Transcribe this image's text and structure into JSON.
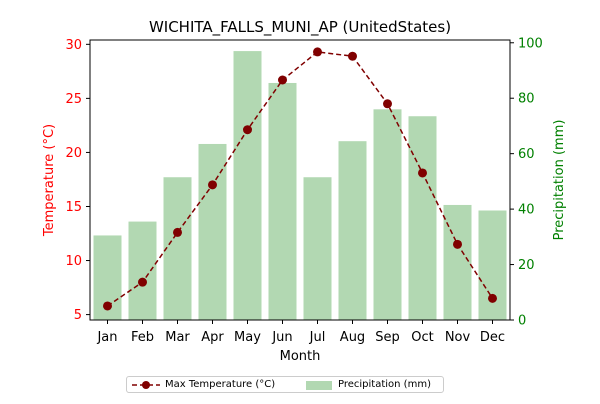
{
  "chart_data": {
    "type": "bar+line",
    "title": "WICHITA_FALLS_MUNI_AP (UnitedStates)",
    "xlabel": "Month",
    "categories": [
      "Jan",
      "Feb",
      "Mar",
      "Apr",
      "May",
      "Jun",
      "Jul",
      "Aug",
      "Sep",
      "Oct",
      "Nov",
      "Dec"
    ],
    "left_axis": {
      "label": "Temperature (°C)",
      "color": "#ff0000",
      "ylim": [
        4.5,
        30.4
      ],
      "ticks": [
        5,
        10,
        15,
        20,
        25,
        30
      ]
    },
    "right_axis": {
      "label": "Precipitation (mm)",
      "color": "#008000",
      "ylim": [
        0,
        101
      ],
      "ticks": [
        0,
        20,
        40,
        60,
        80,
        100
      ]
    },
    "series": [
      {
        "name": "Max Temperature (°C)",
        "kind": "line",
        "axis": "left",
        "color": "#800000",
        "linestyle": "dashed",
        "marker": "circle",
        "values": [
          5.8,
          8.0,
          12.6,
          17.0,
          22.1,
          26.7,
          29.3,
          28.9,
          24.5,
          18.1,
          11.5,
          6.5
        ]
      },
      {
        "name": "Precipitation (mm)",
        "kind": "bar",
        "axis": "right",
        "color": "#b2d8b2",
        "values": [
          30.5,
          35.5,
          51.5,
          63.5,
          97.0,
          85.5,
          51.5,
          64.5,
          76.0,
          73.5,
          41.5,
          39.5
        ]
      }
    ],
    "legend_position": "bottom-center"
  }
}
